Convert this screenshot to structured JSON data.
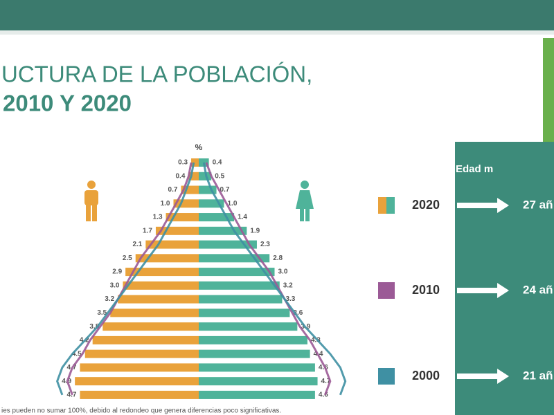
{
  "header": {
    "title_line1": "UCTURA DE LA  POBLACIÓN,",
    "title_line2": "2010 Y 2020"
  },
  "chart_data": {
    "type": "pyramid",
    "unit_label": "%",
    "panel_title": "Edad m",
    "series": [
      {
        "name": "2020",
        "male_color": "#e9a23b",
        "female_color": "#4fb39a",
        "median_label": "27 añ",
        "male": [
          0.3,
          0.4,
          0.7,
          1.0,
          1.3,
          1.7,
          2.1,
          2.5,
          2.9,
          3.0,
          3.2,
          3.5,
          3.8,
          4.2,
          4.5,
          4.7,
          4.9,
          4.7
        ],
        "male_labels": [
          "0.3",
          "0.4",
          "0.7",
          "1.0",
          "1.3",
          "1.7",
          "2.1",
          "2.5",
          "2.9",
          "3.0",
          "3.2",
          "3.5",
          "3.8",
          "4.2",
          "4.5",
          "4.7",
          "4.9",
          "4.7"
        ],
        "female": [
          0.4,
          0.5,
          0.7,
          1.0,
          1.4,
          1.9,
          2.3,
          2.8,
          3.0,
          3.2,
          3.3,
          3.6,
          3.9,
          4.3,
          4.4,
          4.6,
          4.7,
          4.6
        ],
        "female_labels": [
          "0.4",
          "0.5",
          "0.7",
          "1.0",
          "1.4",
          "1.9",
          "2.3",
          "2.8",
          "3.0",
          "3.2",
          "3.3",
          "3.6",
          "3.9",
          "4.3",
          "4.4",
          "4.6",
          "4.7",
          "4.6"
        ]
      },
      {
        "name": "2010",
        "color": "#9b5a96",
        "median_label": "24 añ",
        "male": [
          0.3,
          0.4,
          0.6,
          0.9,
          1.2,
          1.5,
          1.9,
          2.3,
          2.6,
          2.9,
          3.2,
          3.5,
          3.9,
          4.3,
          4.6,
          5.0,
          5.2,
          5.0
        ],
        "female": [
          0.3,
          0.5,
          0.8,
          1.1,
          1.4,
          1.7,
          2.0,
          2.4,
          2.8,
          3.1,
          3.4,
          3.7,
          4.0,
          4.4,
          4.7,
          5.0,
          5.2,
          5.0
        ]
      },
      {
        "name": "2000",
        "color": "#3f90a3",
        "median_label": "21 añ",
        "male": [
          0.2,
          0.3,
          0.5,
          0.7,
          1.0,
          1.3,
          1.6,
          2.0,
          2.4,
          2.8,
          3.2,
          3.6,
          4.0,
          4.5,
          5.0,
          5.4,
          5.6,
          5.4
        ],
        "female": [
          0.2,
          0.3,
          0.5,
          0.8,
          1.1,
          1.4,
          1.8,
          2.2,
          2.6,
          3.0,
          3.4,
          3.8,
          4.2,
          4.7,
          5.2,
          5.6,
          5.8,
          5.6
        ]
      }
    ]
  },
  "footnote": "ies pueden no sumar 100%, debido al redondeo que genera diferencias poco significativas."
}
